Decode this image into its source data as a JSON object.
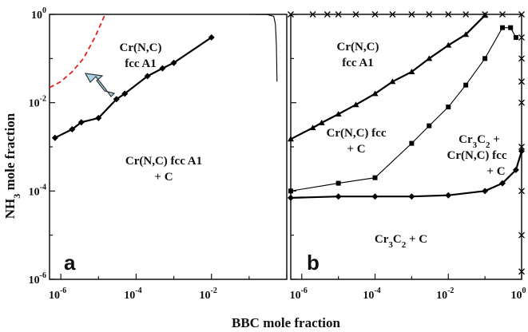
{
  "chart_data": [
    {
      "type": "line",
      "panel_label": "a",
      "xscale": "log",
      "yscale": "log",
      "xlim": [
        5e-07,
        1
      ],
      "ylim": [
        1e-06,
        1
      ],
      "y_tick_labels": [
        {
          "base": "10",
          "exp": "-6"
        },
        {
          "base": "10",
          "exp": "-4"
        },
        {
          "base": "10",
          "exp": "-2"
        },
        {
          "base": "10",
          "exp": "0"
        }
      ],
      "x_tick_labels": [
        {
          "base": "10",
          "exp": "-6"
        },
        {
          "base": "10",
          "exp": "-4"
        },
        {
          "base": "10",
          "exp": "-2"
        }
      ],
      "series": [
        {
          "style": "black line with diamond markers",
          "x": [
            7e-07,
            2e-06,
            3.5e-06,
            1e-05,
            3e-05,
            5e-05,
            0.0002,
            0.0005,
            0.001,
            0.01
          ],
          "y": [
            0.0016,
            0.0025,
            0.0036,
            0.0045,
            0.012,
            0.016,
            0.04,
            0.06,
            0.08,
            0.3
          ]
        },
        {
          "style": "red dashed line",
          "x": [
            5e-07,
            1e-06,
            2e-06,
            4e-06,
            8e-06,
            1.5e-05
          ],
          "y": [
            0.022,
            0.03,
            0.05,
            0.1,
            0.3,
            1.0
          ]
        },
        {
          "style": "thin black boundary",
          "x": [
            0.1,
            0.3,
            0.45,
            0.5,
            0.53,
            0.55
          ],
          "y": [
            1.0,
            0.99,
            0.9,
            0.6,
            0.2,
            0.03
          ]
        }
      ],
      "annotations": [
        {
          "lines": [
            "Cr(N,C)",
            "fcc A1"
          ]
        },
        {
          "lines": [
            "Cr(N,C) fcc A1",
            "+ C"
          ]
        }
      ]
    },
    {
      "type": "line",
      "panel_label": "b",
      "xscale": "log",
      "yscale": "log",
      "xlim": [
        5e-07,
        1
      ],
      "ylim": [
        1e-06,
        1
      ],
      "x_tick_labels": [
        {
          "base": "10",
          "exp": "-6"
        },
        {
          "base": "10",
          "exp": "-4"
        },
        {
          "base": "10",
          "exp": "-2"
        },
        {
          "base": "10",
          "exp": "0"
        }
      ],
      "series": [
        {
          "style": "thick black line with triangle markers",
          "x": [
            5e-07,
            2e-06,
            3.5e-06,
            1e-05,
            3e-05,
            0.0001,
            0.0003,
            0.001,
            0.003,
            0.01,
            0.03,
            0.1
          ],
          "y": [
            0.0015,
            0.0027,
            0.0035,
            0.0055,
            0.009,
            0.016,
            0.03,
            0.05,
            0.1,
            0.2,
            0.35,
            0.95
          ]
        },
        {
          "style": "thin black line with square markers",
          "x": [
            5e-07,
            1e-05,
            0.0001,
            0.001,
            0.003,
            0.01,
            0.03,
            0.1,
            0.3,
            0.5,
            0.7
          ],
          "y": [
            0.0001,
            0.00015,
            0.0002,
            0.0012,
            0.003,
            0.008,
            0.025,
            0.1,
            0.5,
            0.5,
            0.3
          ]
        },
        {
          "style": "thick black line with diamond markers",
          "x": [
            5e-07,
            1e-05,
            0.0001,
            0.001,
            0.01,
            0.1,
            0.3,
            0.7,
            1.0
          ],
          "y": [
            7e-05,
            7.5e-05,
            7.5e-05,
            7.5e-05,
            8e-05,
            0.0001,
            0.00015,
            0.0003,
            0.0008
          ]
        },
        {
          "style": "x markers along top edge",
          "x": [
            5e-07,
            2e-06,
            5e-06,
            1e-05,
            3e-05,
            0.0001,
            0.0003,
            0.001,
            0.003,
            0.01,
            0.03,
            0.1,
            0.3,
            1.0
          ],
          "y": [
            1,
            1,
            1,
            1,
            1,
            1,
            1,
            1,
            1,
            1,
            1,
            1,
            1,
            1
          ]
        },
        {
          "style": "x markers along right edge",
          "x": [
            1,
            1,
            1,
            1,
            1,
            1,
            1,
            1
          ],
          "y": [
            1.5e-06,
            1e-05,
            0.0001,
            0.001,
            0.01,
            0.03,
            0.1,
            0.3
          ]
        }
      ],
      "annotations": [
        {
          "lines": [
            "Cr(N,C)",
            "fcc A1"
          ]
        },
        {
          "lines": [
            "Cr(N,C) fcc",
            "+ C"
          ]
        },
        {
          "lines": [
            "Cr3C2 +",
            "Cr(N,C) fcc",
            "+ C"
          ]
        },
        {
          "lines": [
            "Cr3C2 + C"
          ]
        }
      ]
    }
  ],
  "figure": {
    "ylabel": "NH3 mole fraction",
    "ylabel_parts": {
      "pre": "NH",
      "sub": "3",
      "post": " mole fraction"
    },
    "xlabel": "BBC mole fraction"
  },
  "labels": {
    "a_region1_line1": "Cr(N,C)",
    "a_region1_line2": "fcc A1",
    "a_region2_line1": "Cr(N,C) fcc A1",
    "a_region2_line2": "+ C",
    "b_region1_line1": "Cr(N,C)",
    "b_region1_line2": "fcc A1",
    "b_region2_line1": "Cr(N,C) fcc",
    "b_region2_line2": "+ C",
    "b_region3_line1_pre": "Cr",
    "b_region3_line1_sub": "3",
    "b_region3_line1_post": "C",
    "b_region3_line1_sub2": "2",
    "b_region3_line1_tail": " +",
    "b_region3_line2": "Cr(N,C) fcc",
    "b_region3_line3": "+ C",
    "b_region4_pre": "Cr",
    "b_region4_sub": "3",
    "b_region4_post": "C",
    "b_region4_sub2": "2",
    "b_region4_tail": " + C",
    "panel_a": "a",
    "panel_b": "b"
  },
  "colors": {
    "axis": "#111111",
    "line": "#000000",
    "dashed": "#e02020",
    "arrow_fill": "#a8d4e6",
    "arrow_stroke": "#333333"
  }
}
